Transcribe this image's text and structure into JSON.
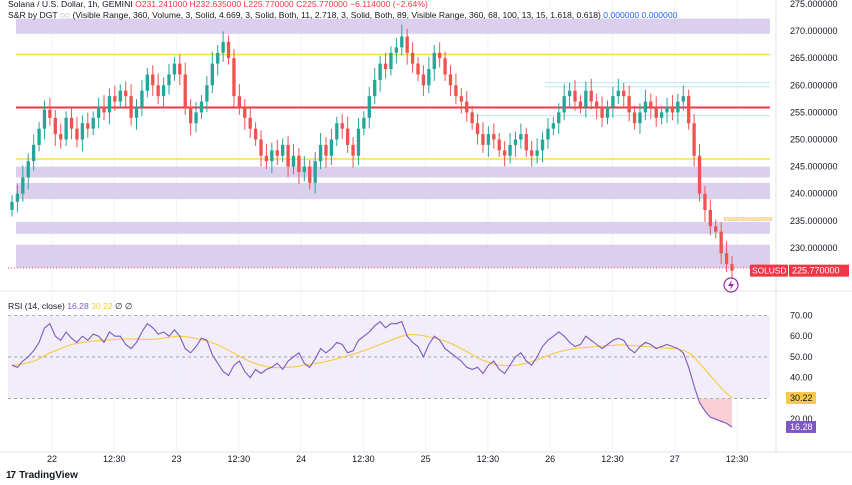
{
  "header": {
    "symbol_line": "Solana / U.S. Dollar, 1h, GEMINI",
    "ohlc": "O231.241000 H232.635000 L225.770000 C225.770000 −6.114000 (−2.64%)",
    "indicator_line": "S&R by DGT ◌◌ (Visible Range, 360, Volume, 3, Solid, 4.669, 3, Solid, Both, 11, 2.718, 3, Solid, Both, 89, Visible Range, 360, 68, 100, 13, 15, 1.618, 0.618)",
    "indicator_values": "0.000000  0.000000"
  },
  "rsi_legend": {
    "label": "RSI (14, close)",
    "rsi_value": "16.28",
    "ma_value": "30.22",
    "extra": "∅  ∅"
  },
  "branding": {
    "name": "TradingView",
    "mark": "17"
  },
  "chart_data": [
    {
      "type": "candlestick",
      "symbol": "SOLUSD",
      "last_price_label": "225.770000",
      "ylim": [
        225,
        275
      ],
      "y_ticks": [
        230,
        235,
        240,
        245,
        250,
        255,
        260,
        265,
        270,
        275
      ],
      "y_tick_labels": [
        "230.000000",
        "235.000000",
        "240.000000",
        "245.000000",
        "250.000000",
        "255.000000",
        "260.000000",
        "265.000000",
        "270.000000",
        "275.000000"
      ],
      "x_tick_labels": [
        "22",
        "12:30",
        "23",
        "12:30",
        "24",
        "12:30",
        "25",
        "12:30",
        "26",
        "12:30",
        "27",
        "12:30"
      ],
      "closes": [
        238.5,
        240,
        243,
        246,
        249,
        252,
        255.5,
        254,
        251,
        250,
        254,
        252,
        250,
        253,
        252,
        254,
        256,
        255,
        258,
        257,
        259,
        258,
        254,
        256,
        259,
        262,
        260,
        258,
        260,
        262,
        264,
        262,
        256,
        253,
        255,
        257,
        260,
        264,
        266,
        268,
        265,
        258,
        256,
        254,
        252,
        250,
        247,
        246,
        248,
        247,
        249,
        245,
        247,
        244,
        245,
        242,
        246,
        249,
        247,
        250,
        253,
        252,
        249,
        247,
        252,
        254,
        258,
        261,
        264,
        263,
        266,
        267,
        269,
        266,
        264,
        262,
        260,
        263,
        266,
        265,
        262,
        260,
        258,
        257,
        255,
        253,
        251,
        249,
        251,
        250,
        248,
        247,
        249,
        250,
        251,
        248,
        247,
        248,
        250,
        252,
        253,
        255,
        258,
        259,
        257,
        256,
        259,
        257,
        256,
        254,
        256,
        258,
        259,
        258,
        255,
        253,
        255,
        257,
        256,
        254,
        255,
        256,
        255,
        257,
        258,
        253,
        247,
        240,
        237,
        234,
        233,
        229,
        227,
        225.8
      ],
      "resistance_levels": [
        {
          "value": 265.7,
          "color": "#f7e04b"
        },
        {
          "value": 255.9,
          "color": "#f23645"
        },
        {
          "value": 246.4,
          "color": "#f7e04b"
        }
      ],
      "zones": [
        {
          "from": 269.5,
          "to": 272.3
        },
        {
          "from": 243.0,
          "to": 245.0
        },
        {
          "from": 239.0,
          "to": 242.0
        },
        {
          "from": 232.6,
          "to": 234.8
        },
        {
          "from": 226.3,
          "to": 230.6
        }
      ],
      "colors": {
        "up": "#26a69a",
        "down": "#ef5350",
        "zone": "#d1c4e9",
        "last": "#f23645"
      }
    },
    {
      "type": "line",
      "name": "RSI (14, close)",
      "ylim": [
        10,
        75
      ],
      "y_ticks": [
        20,
        30.22,
        40,
        50,
        60,
        70
      ],
      "y_tick_labels": [
        "20.00",
        "30.22",
        "40.00",
        "50.00",
        "60.00",
        "70.00"
      ],
      "last_rsi_label": "16.28",
      "upper_band": 70,
      "middle_band": 50,
      "lower_band": 30,
      "rsi": [
        46,
        45,
        48,
        50,
        53,
        57,
        64,
        66,
        60,
        58,
        62,
        59,
        57,
        60,
        58,
        61,
        60,
        57,
        62,
        60,
        60,
        56,
        54,
        57,
        62,
        66,
        64,
        61,
        62,
        60,
        63,
        60,
        54,
        52,
        55,
        59,
        58,
        51,
        47,
        43,
        41,
        46,
        48,
        43,
        40,
        44,
        42,
        44,
        45,
        47,
        44,
        48,
        50,
        52,
        47,
        45,
        49,
        54,
        52,
        54,
        57,
        56,
        52,
        53,
        58,
        60,
        62,
        65,
        67,
        64,
        66,
        66,
        67,
        60,
        57,
        55,
        50,
        56,
        60,
        58,
        54,
        52,
        50,
        48,
        45,
        44,
        45,
        42,
        46,
        48,
        44,
        42,
        46,
        50,
        52,
        48,
        46,
        50,
        55,
        58,
        60,
        62,
        60,
        57,
        55,
        56,
        60,
        58,
        56,
        54,
        56,
        58,
        59,
        58,
        54,
        52,
        55,
        57,
        56,
        54,
        55,
        56,
        55,
        54,
        52,
        45,
        36,
        28,
        24,
        21,
        20,
        19,
        18,
        16.28
      ],
      "ma": [
        46,
        46.2,
        46.6,
        47.2,
        48,
        49,
        50.5,
        52,
        53,
        54,
        55,
        56,
        56.5,
        57,
        57.3,
        57.6,
        57.8,
        58,
        58.2,
        58.4,
        58.6,
        58.7,
        58.7,
        58.6,
        58.5,
        58.4,
        58.5,
        58.7,
        59,
        59.4,
        59.8,
        60,
        59.8,
        59.4,
        58.8,
        58.2,
        57.6,
        56.8,
        55.8,
        54.6,
        53.2,
        51.8,
        50.4,
        49,
        47.8,
        46.8,
        46,
        45.4,
        45,
        44.8,
        44.8,
        45,
        45.2,
        45.6,
        46,
        46.4,
        46.8,
        47.2,
        47.8,
        48.4,
        49,
        49.8,
        50.6,
        51.4,
        52.2,
        53,
        54,
        55,
        56,
        57,
        58,
        59,
        60,
        60.6,
        60.8,
        60.6,
        60.2,
        59.6,
        59,
        58.4,
        57.6,
        56.6,
        55.4,
        54,
        52.6,
        51,
        49.6,
        48.4,
        47.4,
        46.6,
        46,
        45.8,
        45.8,
        46,
        46.4,
        47,
        47.8,
        48.6,
        49.6,
        50.6,
        51.6,
        52.4,
        53,
        53.6,
        54,
        54.4,
        54.6,
        54.8,
        55,
        55.2,
        55.4,
        55.6,
        55.8,
        55.8,
        55.6,
        55.4,
        55.2,
        55,
        54.8,
        54.6,
        54.4,
        54.2,
        54,
        53.8,
        53.2,
        52,
        50,
        47,
        44,
        41,
        38,
        35,
        32.5,
        30.22
      ],
      "colors": {
        "rsi": "#7e57c2",
        "ma": "#f7c948",
        "band": "#ede7f6",
        "oversold_fill": "#f8c9cf"
      }
    }
  ]
}
